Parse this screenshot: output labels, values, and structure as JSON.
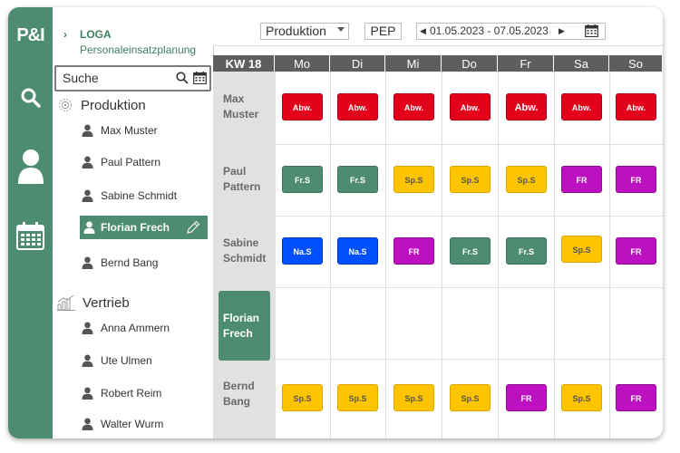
{
  "rail": {
    "logo": "P&I"
  },
  "sidebar": {
    "breadcrumb": {
      "line1": "LOGA",
      "line2": "Personaleinsatzplanung"
    },
    "search": {
      "value": "Suche"
    },
    "groups": [
      {
        "label": "Produktion",
        "people": [
          "Max Muster",
          "Paul Pattern",
          "Sabine Schmidt",
          "Florian Frech",
          "Bernd Bang"
        ]
      },
      {
        "label": "Vertrieb",
        "people": [
          "Anna Ammern",
          "Ute Ulmen",
          "Robert Reim",
          "Walter Wurm"
        ]
      }
    ],
    "selected_person": "Florian Frech"
  },
  "toolbar": {
    "department": "Produktion",
    "mode": "PEP",
    "date_range": "01.05.2023 - 07.05.2023"
  },
  "schedule": {
    "week_label": "KW 18",
    "days": [
      "Mo",
      "Di",
      "Mi",
      "Do",
      "Fr",
      "Sa",
      "So"
    ],
    "rows": [
      {
        "name_line1": "Max",
        "name_line2": "Muster",
        "shifts": [
          "Abw.",
          "Abw.",
          "Abw.",
          "Abw.",
          "Abw.",
          "Abw.",
          "Abw."
        ]
      },
      {
        "name_line1": "Paul",
        "name_line2": "Pattern",
        "shifts": [
          "Fr.S",
          "Fr.S",
          "Sp.S",
          "Sp.S",
          "Sp.S",
          "FR",
          "FR"
        ]
      },
      {
        "name_line1": "Sabine",
        "name_line2": "Schmidt",
        "shifts": [
          "Na.S",
          "Na.S",
          "FR",
          "Fr.S",
          "Fr.S",
          "Sp.S",
          "FR"
        ]
      },
      {
        "name_line1": "Florian",
        "name_line2": "Frech",
        "shifts": []
      },
      {
        "name_line1": "Bernd",
        "name_line2": "Bang",
        "shifts": [
          "Sp.S",
          "Sp.S",
          "Sp.S",
          "Sp.S",
          "FR",
          "Sp.S",
          "FR"
        ]
      }
    ],
    "shift_colors": {
      "Abw.": "#e2001a",
      "Fr.S": "#4e8c72",
      "Sp.S": "#ffc400",
      "FR": "#bd10c0",
      "Na.S": "#0050ff"
    }
  },
  "colors": {
    "accent": "#4e8c72",
    "header": "#5e5e5e"
  }
}
